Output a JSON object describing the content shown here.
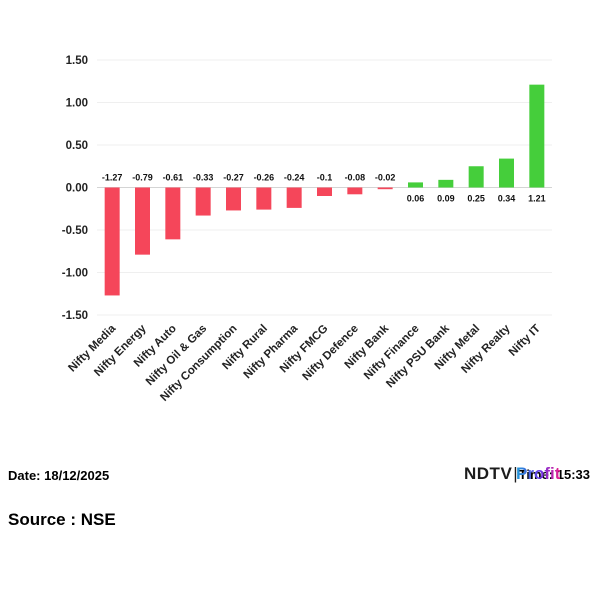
{
  "chart_data": {
    "type": "bar",
    "title": "",
    "xlabel": "",
    "ylabel": "",
    "categories": [
      "Nifty Media",
      "Nifty Energy",
      "Nifty Auto",
      "Nifty Oil & Gas",
      "Nifty Consumption",
      "Nifty Rural",
      "Nifty Pharma",
      "Nifty FMCG",
      "Nifty Defence",
      "Nifty Bank",
      "Nifty Finance",
      "Nifty PSU Bank",
      "Nifty Metal",
      "Nifty Realty",
      "Nifty IT"
    ],
    "values": [
      -1.27,
      -0.79,
      -0.61,
      -0.33,
      -0.27,
      -0.26,
      -0.24,
      -0.1,
      -0.08,
      -0.02,
      0.06,
      0.09,
      0.25,
      0.34,
      1.21
    ],
    "value_labels": [
      "-1.27",
      "-0.79",
      "-0.61",
      "-0.33",
      "-0.27",
      "-0.26",
      "-0.24",
      "-0.1",
      "-0.08",
      "-0.02",
      "0.06",
      "0.09",
      "0.25",
      "0.34",
      "1.21"
    ],
    "ylim": [
      -1.5,
      1.5
    ],
    "ytick_step": 0.5,
    "ytick_labels": [
      "1.50",
      "1.00",
      "0.50",
      "0.00",
      "-0.50",
      "-1.00",
      "-1.50"
    ],
    "grid": true,
    "legend": "none",
    "colors": {
      "positive": "#45CE3B",
      "negative": "#F5465A",
      "gridline": "#efefef",
      "zeroline": "#d4d4d4",
      "tick_text": "#222222",
      "value_text": "#111111"
    }
  },
  "footer": {
    "date_label": "Date: 18/12/2025",
    "time_label": "Time: 15:33",
    "source_label": "Source : NSE",
    "logo": {
      "ndtv": "NDTV",
      "separator": "|",
      "profit": "Profit"
    }
  }
}
